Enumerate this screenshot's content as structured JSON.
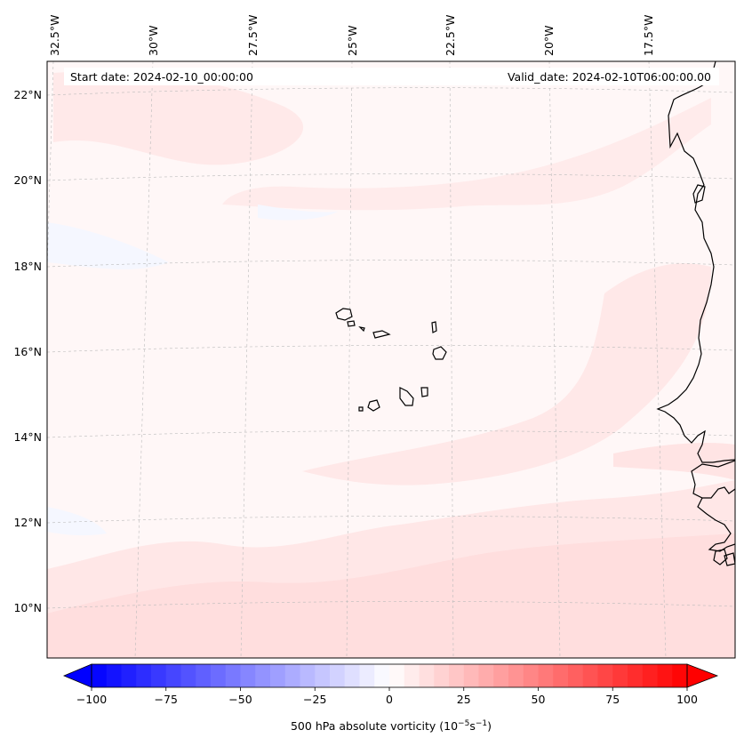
{
  "header": {
    "start_date": "Start date: 2024-02-10_00:00:00",
    "valid_date": "Valid_date: 2024-02-10T06:00:00.00"
  },
  "map": {
    "lon_labels": [
      "32.5°W",
      "30°W",
      "27.5°W",
      "25°W",
      "22.5°W",
      "20°W",
      "17.5°W"
    ],
    "lat_labels": [
      "22°N",
      "20°N",
      "18°N",
      "16°N",
      "14°N",
      "12°N",
      "10°N"
    ],
    "field_color": "#fff6f6",
    "coast_color": "#000000",
    "grid_color": "#bbbbbb"
  },
  "colorbar": {
    "ticks": [
      "−100",
      "−75",
      "−50",
      "−25",
      "0",
      "25",
      "50",
      "75",
      "100"
    ],
    "vmin": -100,
    "vmax": 100,
    "levels": 40,
    "label_main": "500 hPa absolute vorticity (10",
    "label_exp1": "−5",
    "label_mid": "s",
    "label_exp2": "−1",
    "label_end": ")"
  }
}
